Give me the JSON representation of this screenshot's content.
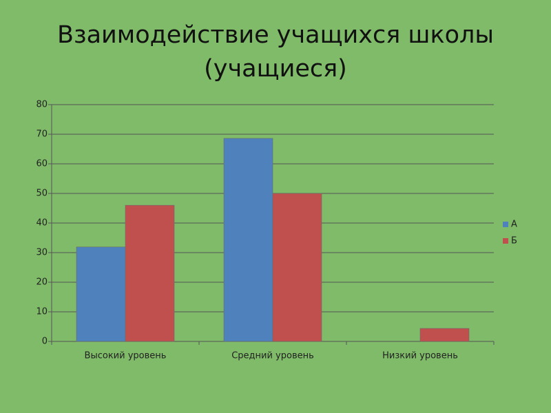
{
  "chart_data": {
    "type": "bar",
    "title": [
      "Взаимодействие учащихся школы",
      "(учащиеся)"
    ],
    "categories": [
      "Высокий уровень",
      "Средний уровень",
      "Низкий уровень"
    ],
    "series": [
      {
        "name": "А",
        "color": "#4f81bd",
        "values": [
          31.9,
          68.6,
          0
        ]
      },
      {
        "name": "Б",
        "color": "#c0504d",
        "values": [
          46,
          50,
          4.4
        ]
      }
    ],
    "ylim": [
      0,
      80
    ],
    "yticks": [
      0,
      10,
      20,
      30,
      40,
      50,
      60,
      70,
      80
    ],
    "grid": true,
    "legend": "right"
  }
}
